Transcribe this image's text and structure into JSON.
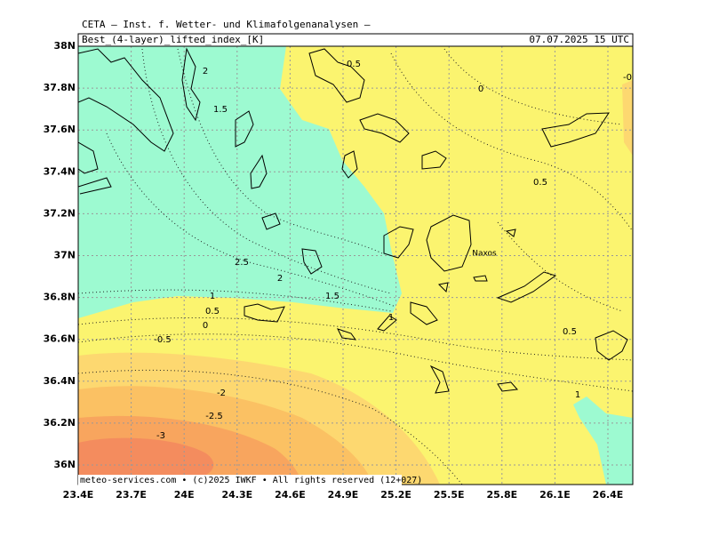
{
  "header": {
    "institute": "CETA — Inst. f. Wetter- und Klimafolgenanalysen —",
    "field": "Best_(4-layer)_lifted_index_[K]",
    "valid_time": "07.07.2025 15 UTC"
  },
  "footer": "meteo-services.com • (c)2025 IWKF • All rights reserved (12+027)",
  "lat_ticks": [
    "38N",
    "37.8N",
    "37.6N",
    "37.4N",
    "37.2N",
    "37N",
    "36.8N",
    "36.6N",
    "36.4N",
    "36.2N",
    "36N"
  ],
  "lon_ticks": [
    "23.4E",
    "23.7E",
    "24E",
    "24.3E",
    "24.6E",
    "24.9E",
    "25.2E",
    "25.5E",
    "25.8E",
    "26.1E",
    "26.4E"
  ],
  "places": [
    "Naxos"
  ],
  "contour_labels": [
    "0.5",
    "0",
    "-0",
    "2",
    "1.5",
    "0.5",
    "2.5",
    "2",
    "1.5",
    "1",
    "0.5",
    "0",
    "-0.5",
    "0.5",
    "1",
    "1",
    "-2",
    "-2.5",
    "-3"
  ]
}
